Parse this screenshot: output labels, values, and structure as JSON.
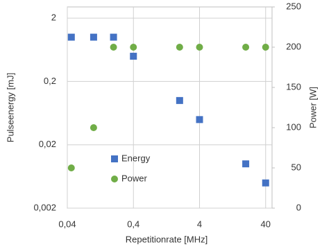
{
  "chart_data": {
    "type": "scatter",
    "x_label": "Repetitionrate [MHz]",
    "y_label": "Pulseenergy [mJ]",
    "y2_label": "Power [W]",
    "xscale": "log",
    "yscale": "log",
    "grid": true,
    "legend": "lower left",
    "xlim": [
      0.04,
      50
    ],
    "xticks": [
      {
        "value": 0.04,
        "label": "0,04"
      },
      {
        "value": 0.4,
        "label": "0,4"
      },
      4,
      40
    ],
    "ylim": [
      0.002,
      3
    ],
    "yticks": [
      {
        "value": 0.002,
        "label": "0,002"
      },
      {
        "value": 0.02,
        "label": "0,02"
      },
      {
        "value": 0.2,
        "label": "0,2"
      },
      2
    ],
    "y2lim": [
      0,
      250
    ],
    "y2ticks": [
      0,
      50,
      100,
      150,
      200,
      250
    ],
    "series": [
      {
        "name": "Energy",
        "color": "#4472c4",
        "marker": "square",
        "x": [
          0.046,
          0.1,
          0.2,
          0.4,
          2,
          4,
          20,
          40
        ],
        "values": [
          1,
          1,
          1,
          0.5,
          0.1,
          0.05,
          0.01,
          0.005
        ]
      },
      {
        "name": "Power",
        "color": "#70ad47",
        "marker": "circle",
        "axis": "y2",
        "x": [
          0.046,
          0.1,
          0.2,
          0.4,
          2,
          4,
          20,
          40
        ],
        "values": [
          50,
          100,
          200,
          200,
          200,
          200,
          200,
          200
        ]
      }
    ]
  }
}
